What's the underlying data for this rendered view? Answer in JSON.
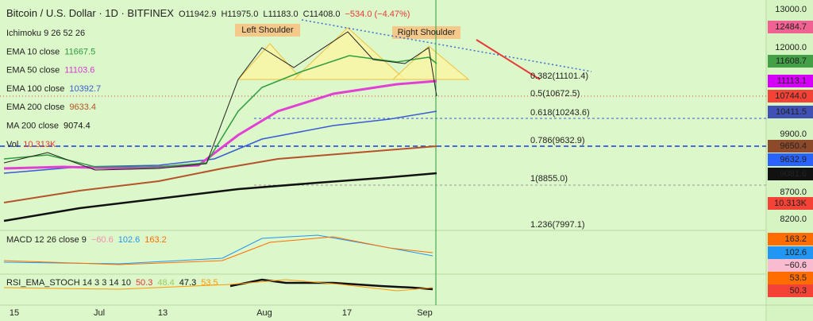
{
  "header": {
    "symbol": "Bitcoin / U.S. Dollar · 1D · BITFINEX",
    "ohlc": [
      "O11942.9",
      "H11975.0",
      "L11183.0",
      "C11408.0"
    ],
    "change": "−534.0 (−4.47%)"
  },
  "indicators": [
    {
      "name": "Ichimoku 9 26 52 26",
      "value": "",
      "color": "#222222"
    },
    {
      "name": "EMA 10 close",
      "value": "11667.5",
      "color": "#2e9e3e"
    },
    {
      "name": "EMA 50 close",
      "value": "11103.6",
      "color": "#d43ad4"
    },
    {
      "name": "EMA 100 close",
      "value": "10392.7",
      "color": "#3a5bd4"
    },
    {
      "name": "EMA 200 close",
      "value": "9633.4",
      "color": "#b5542a"
    },
    {
      "name": "MA 200 close",
      "value": "9074.4",
      "color": "#111111"
    },
    {
      "name": "Vol",
      "value": "10.313K",
      "color": "#e53935"
    }
  ],
  "annotations": [
    "Left Shoulder",
    "Right Shoulder"
  ],
  "fib_levels": [
    "0.382(11101.4)",
    "0.5(10672.5)",
    "0.618(10243.6)",
    "0.786(9632.9)",
    "1(8855.0)",
    "1.236(7997.1)"
  ],
  "price_axis": [
    "13000.0",
    "12000.0",
    "9900.0",
    "8700.0",
    "8200.0"
  ],
  "price_tags": [
    {
      "label": "12484.7",
      "color": "#f06292"
    },
    {
      "label": "11608.7",
      "color": "#43a047"
    },
    {
      "label": "11113.1",
      "color": "#d500f9"
    },
    {
      "label": "10744.0",
      "color": "#f44336"
    },
    {
      "label": "10411.5",
      "color": "#3f51b5"
    },
    {
      "label": "9650.4",
      "color": "#8d4a2b"
    },
    {
      "label": "9632.9",
      "color": "#2962ff"
    },
    {
      "label": "9081.6",
      "color": "#111111"
    },
    {
      "label": "10.313K",
      "color": "#f44336"
    }
  ],
  "macd": {
    "name": "MACD 12 26 close 9",
    "values": [
      "−60.6",
      "102.6",
      "163.2"
    ],
    "colors": [
      "#f48fb1",
      "#2196f3",
      "#ff6d00"
    ],
    "tags": [
      {
        "label": "163.2",
        "color": "#ff6d00"
      },
      {
        "label": "102.6",
        "color": "#2196f3"
      },
      {
        "label": "−60.6",
        "color": "#f8bbd0"
      }
    ]
  },
  "rsi": {
    "name": "RSI_EMA_STOCH 14 3 3 14 10",
    "values": [
      "50.3",
      "48.4",
      "47.3",
      "53.5"
    ],
    "colors": [
      "#e53935",
      "#9ccc65",
      "#111111",
      "#ff9800"
    ],
    "tags": [
      {
        "label": "53.5",
        "color": "#ff6d00"
      },
      {
        "label": "50.3",
        "color": "#f44336"
      }
    ]
  },
  "x_axis": [
    "15",
    "Jul",
    "13",
    "Aug",
    "17",
    "Sep"
  ]
}
